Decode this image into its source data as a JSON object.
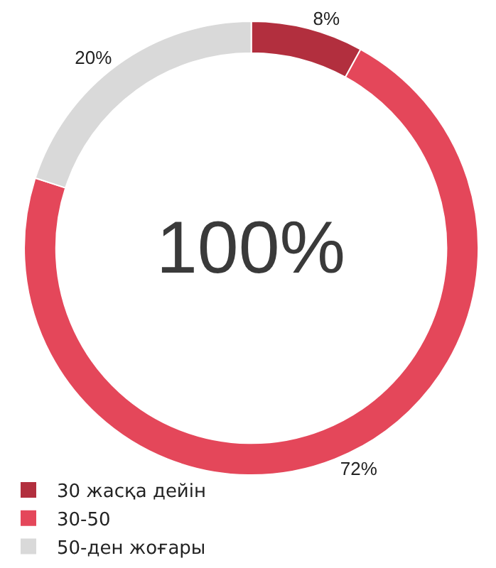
{
  "chart_data": {
    "type": "donut",
    "categories": [
      "30 жасқа дейін",
      "30-50",
      "50-ден жоғары"
    ],
    "values": [
      8,
      72,
      20
    ],
    "colors": [
      "#b22f3e",
      "#e4475a",
      "#d9d9d9"
    ],
    "value_labels": [
      "8%",
      "72%",
      "20%"
    ],
    "annotations": [
      "100%"
    ],
    "legend": "bottom left"
  }
}
